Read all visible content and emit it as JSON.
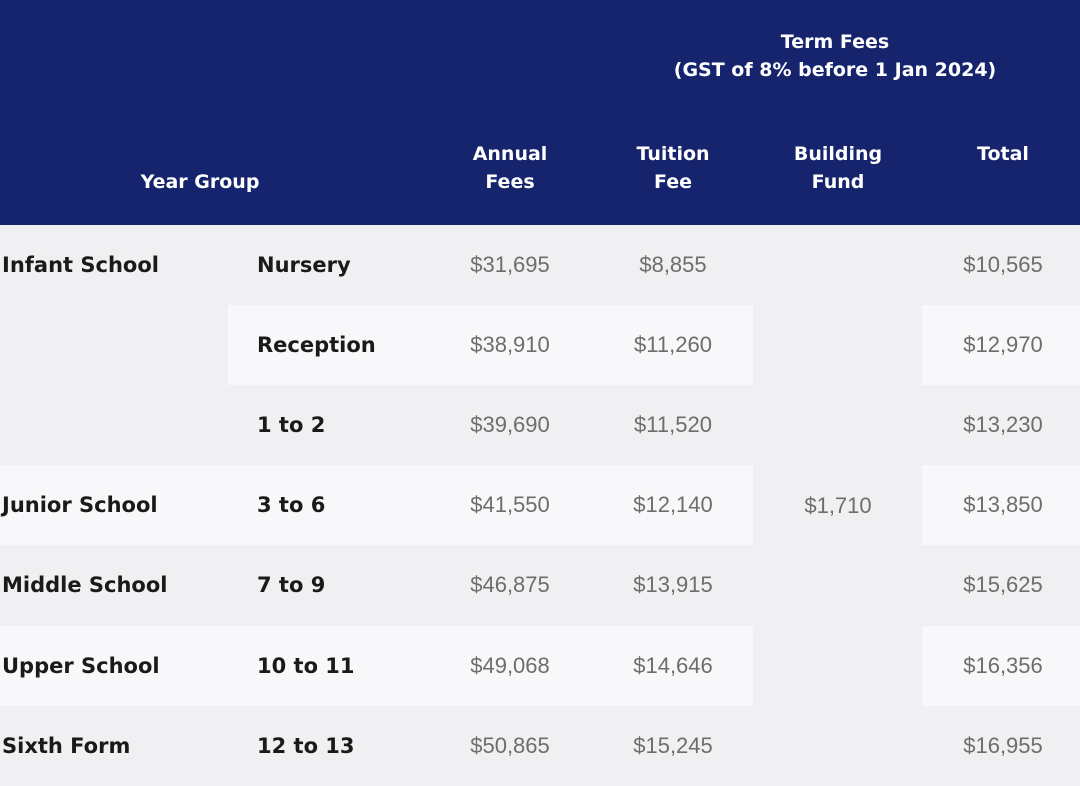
{
  "header": {
    "term_fees_title": "Term Fees",
    "term_fees_note": "(GST of 8% before 1 Jan 2024)",
    "year_group": "Year Group",
    "columns": {
      "annual": [
        "Annual",
        "Fees"
      ],
      "tuition": [
        "Tuition",
        "Fee"
      ],
      "building": [
        "Building",
        "Fund"
      ],
      "total": [
        "Total"
      ]
    }
  },
  "building_fund": "$1,710",
  "rows": [
    {
      "school": "Infant School",
      "group": "Nursery",
      "annual": "$31,695",
      "tuition": "$8,855",
      "total": "$10,565"
    },
    {
      "school": "",
      "group": "Reception",
      "annual": "$38,910",
      "tuition": "$11,260",
      "total": "$12,970"
    },
    {
      "school": "",
      "group": "1 to 2",
      "annual": "$39,690",
      "tuition": "$11,520",
      "total": "$13,230"
    },
    {
      "school": "Junior School",
      "group": "3 to 6",
      "annual": "$41,550",
      "tuition": "$12,140",
      "total": "$13,850"
    },
    {
      "school": "Middle School",
      "group": "7 to 9",
      "annual": "$46,875",
      "tuition": "$13,915",
      "total": "$15,625"
    },
    {
      "school": "Upper School",
      "group": "10 to 11",
      "annual": "$49,068",
      "tuition": "$14,646",
      "total": "$16,356"
    },
    {
      "school": "Sixth Form",
      "group": "12 to 13",
      "annual": "$50,865",
      "tuition": "$15,245",
      "total": "$16,955"
    }
  ]
}
